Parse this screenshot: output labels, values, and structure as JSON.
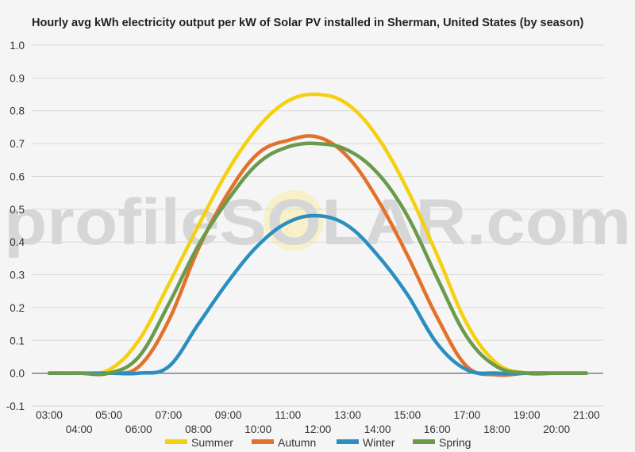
{
  "chart_data": {
    "type": "line",
    "title": "Hourly avg kWh electricity output per kW of Solar PV installed in Sherman, United States (by season)",
    "xlabel": "",
    "ylabel": "",
    "ylim": [
      -0.1,
      1.0
    ],
    "yticks": [
      "-0.1",
      "0.0",
      "0.1",
      "0.2",
      "0.3",
      "0.4",
      "0.5",
      "0.6",
      "0.7",
      "0.8",
      "0.9",
      "1.0"
    ],
    "categories": [
      "03:00",
      "04:00",
      "05:00",
      "06:00",
      "07:00",
      "08:00",
      "09:00",
      "10:00",
      "11:00",
      "12:00",
      "13:00",
      "14:00",
      "15:00",
      "16:00",
      "17:00",
      "18:00",
      "19:00",
      "20:00",
      "21:00"
    ],
    "grid": true,
    "legend_position": "bottom",
    "watermark": "profileSOLAR.com",
    "series": [
      {
        "name": "Summer",
        "color": "#f5d00f",
        "values": [
          0,
          0,
          0.01,
          0.1,
          0.27,
          0.45,
          0.62,
          0.75,
          0.83,
          0.85,
          0.82,
          0.72,
          0.56,
          0.36,
          0.15,
          0.03,
          0,
          0,
          0
        ]
      },
      {
        "name": "Autumn",
        "color": "#e3712a",
        "values": [
          0,
          0,
          0,
          0.02,
          0.16,
          0.38,
          0.55,
          0.67,
          0.71,
          0.72,
          0.66,
          0.53,
          0.36,
          0.17,
          0.02,
          -0.005,
          0,
          0,
          0
        ]
      },
      {
        "name": "Winter",
        "color": "#2a8fc0",
        "values": [
          0,
          0,
          0,
          0,
          0.02,
          0.15,
          0.28,
          0.39,
          0.46,
          0.48,
          0.45,
          0.36,
          0.24,
          0.09,
          0.01,
          0,
          0,
          0,
          0
        ]
      },
      {
        "name": "Spring",
        "color": "#6a9a4c",
        "values": [
          0,
          0,
          0,
          0.05,
          0.21,
          0.39,
          0.53,
          0.64,
          0.69,
          0.7,
          0.68,
          0.61,
          0.48,
          0.29,
          0.11,
          0.02,
          0,
          0,
          0
        ]
      }
    ]
  }
}
